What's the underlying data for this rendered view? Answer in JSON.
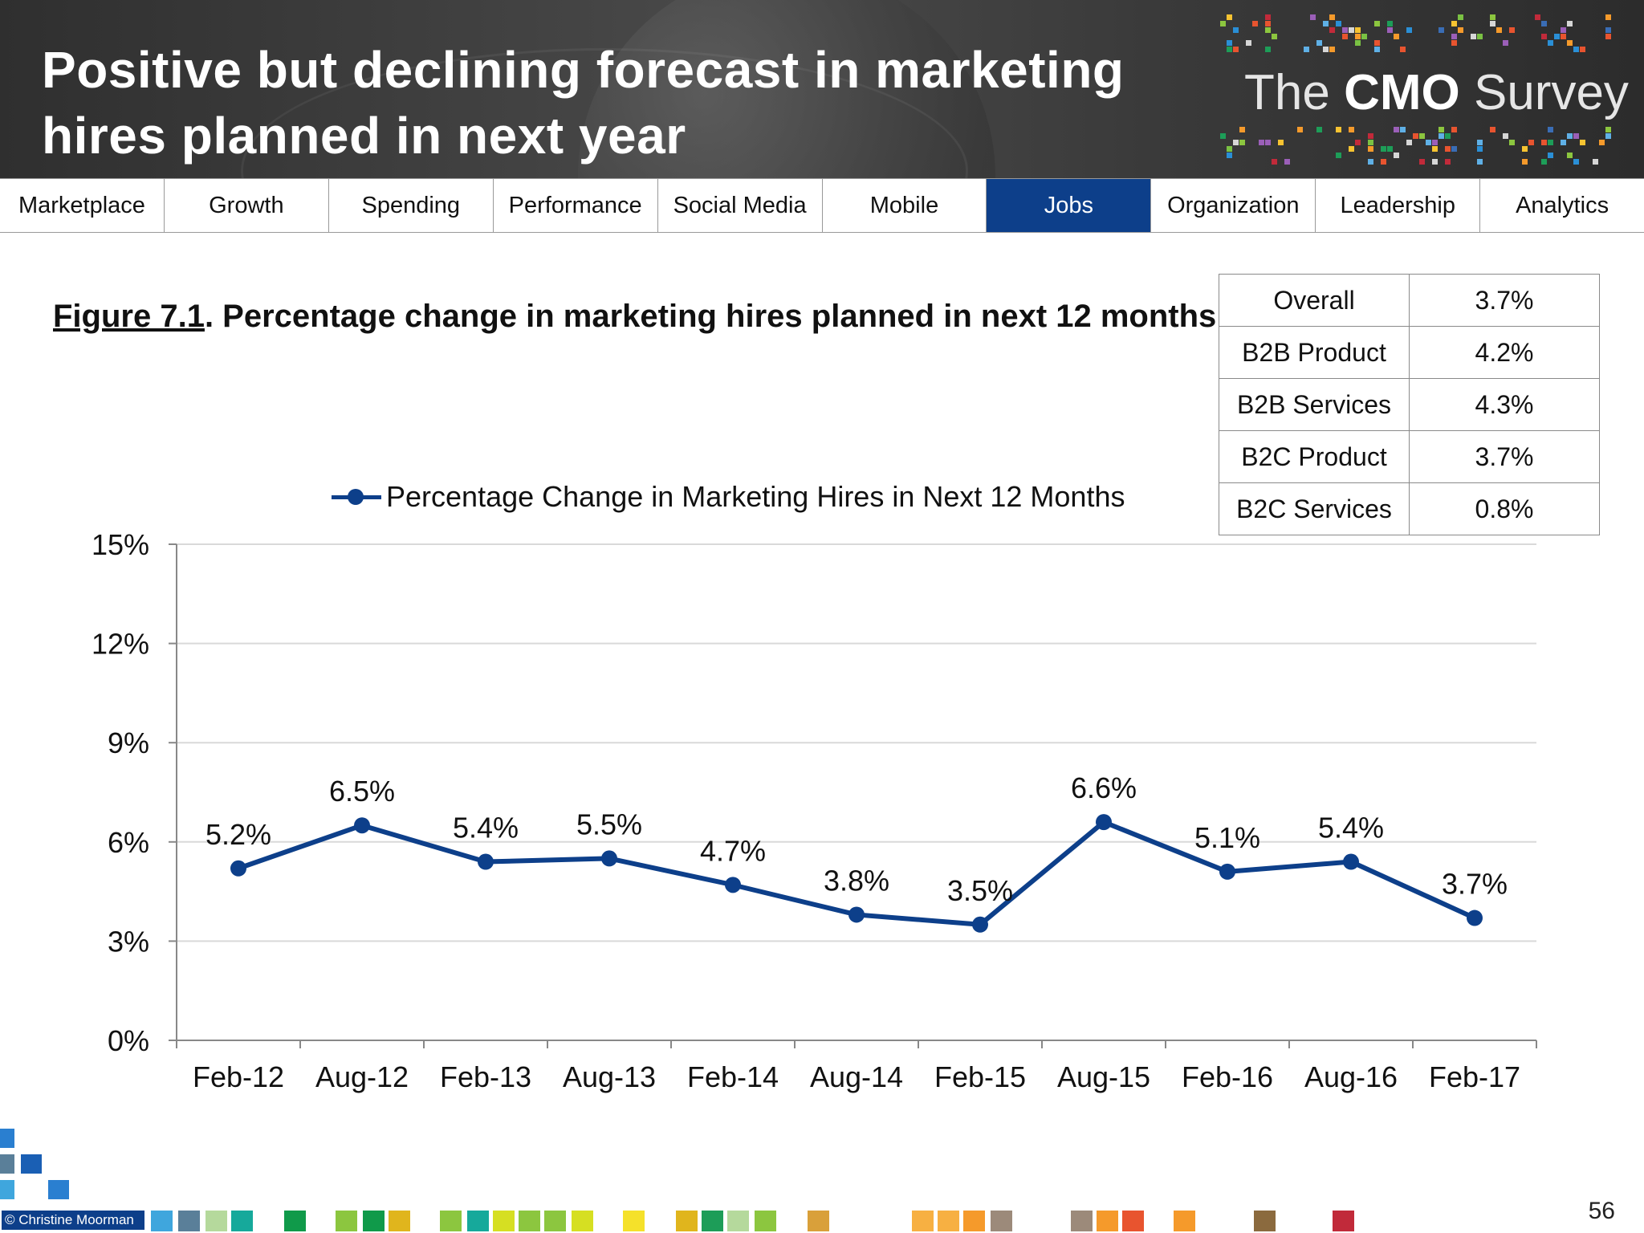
{
  "header": {
    "title": "Positive but declining forecast in marketing hires planned in next year",
    "brand_the": "The",
    "brand_cmo": "CMO",
    "brand_survey": "Survey"
  },
  "nav": {
    "tabs": [
      "Marketplace",
      "Growth",
      "Spending",
      "Performance",
      "Social Media",
      "Mobile",
      "Jobs",
      "Organization",
      "Leadership",
      "Analytics"
    ],
    "active": "Jobs"
  },
  "figure": {
    "label": "Figure 7.1",
    "title_rest": ".  Percentage change in marketing hires planned in next 12 months"
  },
  "segments": [
    {
      "name": "Overall",
      "value": "3.7%"
    },
    {
      "name": "B2B Product",
      "value": "4.2%"
    },
    {
      "name": "B2B Services",
      "value": "4.3%"
    },
    {
      "name": "B2C Product",
      "value": "3.7%"
    },
    {
      "name": "B2C Services",
      "value": "0.8%"
    }
  ],
  "chart_data": {
    "type": "line",
    "title": "",
    "xlabel": "",
    "ylabel": "",
    "categories": [
      "Feb-12",
      "Aug-12",
      "Feb-13",
      "Aug-13",
      "Feb-14",
      "Aug-14",
      "Feb-15",
      "Aug-15",
      "Feb-16",
      "Aug-16",
      "Feb-17"
    ],
    "series": [
      {
        "name": "Percentage Change in Marketing Hires in Next 12 Months",
        "values": [
          5.2,
          6.5,
          5.4,
          5.5,
          4.7,
          3.8,
          3.5,
          6.6,
          5.1,
          5.4,
          3.7
        ],
        "labels": [
          "5.2%",
          "6.5%",
          "5.4%",
          "5.5%",
          "4.7%",
          "3.8%",
          "3.5%",
          "6.6%",
          "5.1%",
          "5.4%",
          "3.7%"
        ],
        "color": "#0d3f8a"
      }
    ],
    "ylim": [
      0,
      15
    ],
    "yticks": [
      0,
      3,
      6,
      9,
      12,
      15
    ],
    "ytick_labels": [
      "0%",
      "3%",
      "6%",
      "9%",
      "12%",
      "15%"
    ],
    "grid": true,
    "legend_position": "top"
  },
  "footer": {
    "copyright": "© Christine Moorman",
    "page_number": "56"
  }
}
